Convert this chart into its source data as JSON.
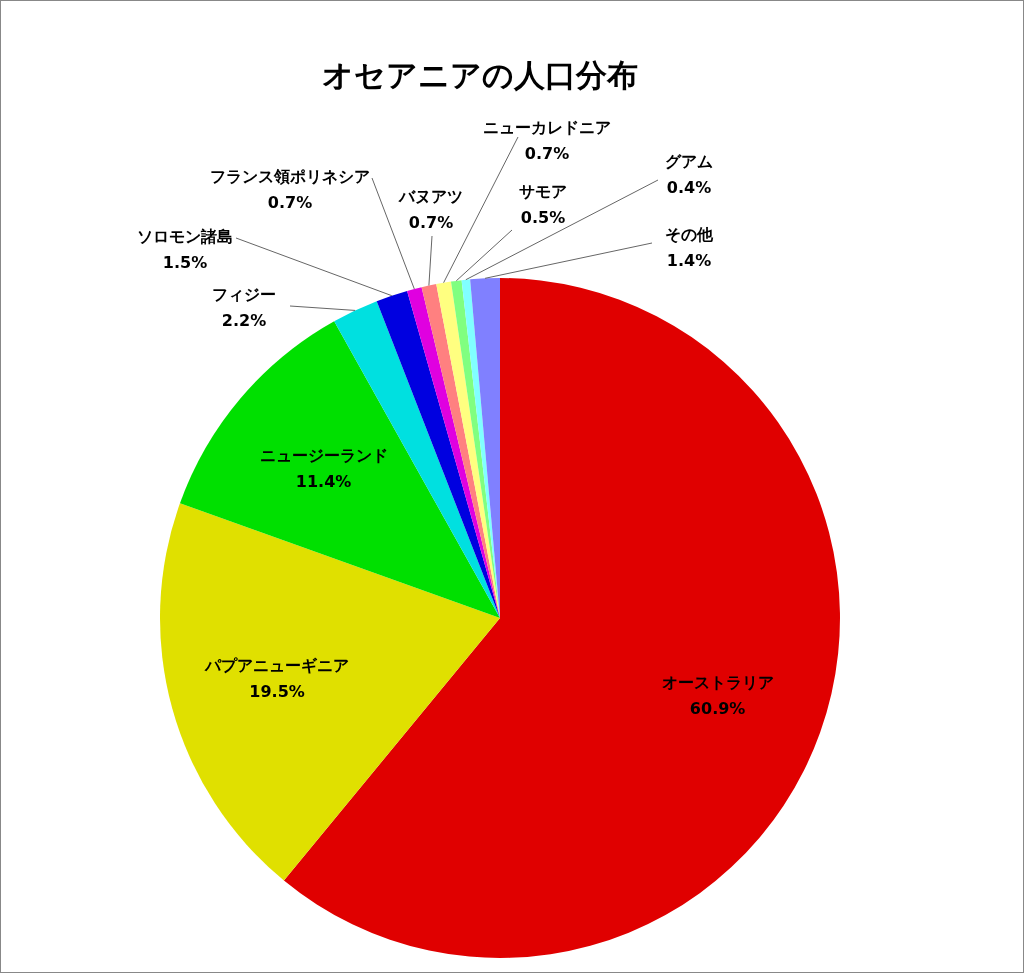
{
  "chart_data": {
    "type": "pie",
    "title": "オセアニアの人口分布",
    "categories": [
      "オーストラリア",
      "パプアニューギニア",
      "ニュージーランド",
      "フィジー",
      "ソロモン諸島",
      "フランス領ポリネシア",
      "バヌアツ",
      "ニューカレドニア",
      "サモア",
      "グアム",
      "その他"
    ],
    "values": [
      60.9,
      19.5,
      11.4,
      2.2,
      1.5,
      0.7,
      0.7,
      0.7,
      0.5,
      0.4,
      1.4
    ],
    "value_labels": [
      "60.9%",
      "19.5%",
      "11.4%",
      "2.2%",
      "1.5%",
      "0.7%",
      "0.7%",
      "0.7%",
      "0.5%",
      "0.4%",
      "1.4%"
    ],
    "colors": [
      "#e00000",
      "#e0e000",
      "#00e000",
      "#00e0e0",
      "#0000e0",
      "#e000e0",
      "#ff8080",
      "#ffff80",
      "#80ff80",
      "#80ffff",
      "#8080ff"
    ]
  }
}
